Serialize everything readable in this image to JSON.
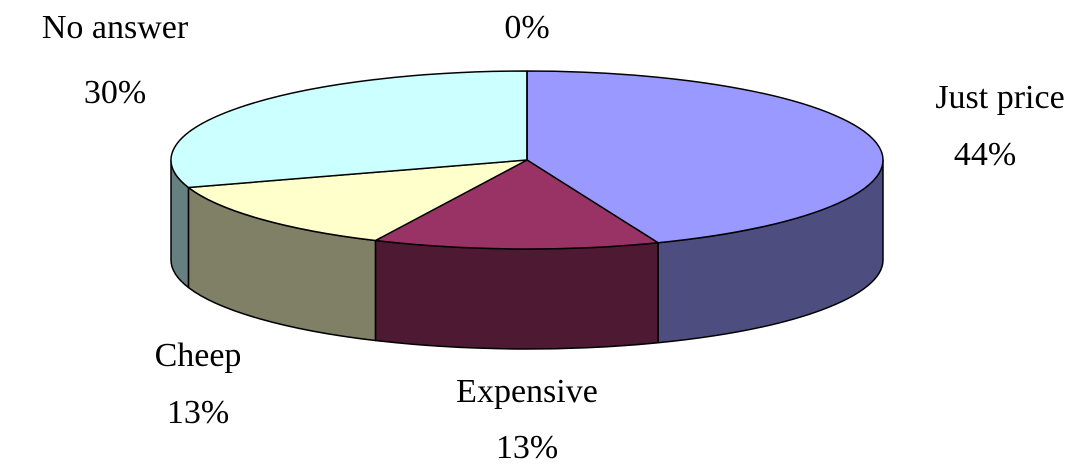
{
  "chart_data": {
    "type": "pie3d",
    "categories": [
      "Just price",
      "Expensive",
      "Cheep",
      "No answer",
      null
    ],
    "values": [
      44,
      13,
      13,
      30,
      0
    ],
    "value_labels": [
      "44%",
      "13%",
      "13%",
      "30%",
      "0%"
    ],
    "colors": [
      "#9999ff",
      "#993366",
      "#ffffcc",
      "#ccffff",
      "#ffffff"
    ],
    "side_colors": [
      "#4d4d80",
      "#4d1933",
      "#808066",
      "#668080",
      "#808080"
    ]
  }
}
